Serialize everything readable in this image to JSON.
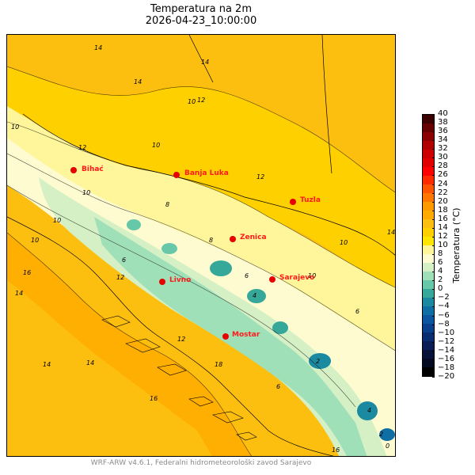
{
  "title": {
    "line1": "Temperatura na 2m",
    "line2": "2026-04-23_10:00:00"
  },
  "cities": [
    {
      "name": "Bihać"
    },
    {
      "name": "Banja Luka"
    },
    {
      "name": "Tuzla"
    },
    {
      "name": "Zenica"
    },
    {
      "name": "Sarajevo"
    },
    {
      "name": "Livno"
    },
    {
      "name": "Mostar"
    }
  ],
  "contour_labels": [
    "14",
    "14",
    "14",
    "10",
    "12",
    "10",
    "12",
    "10",
    "12",
    "10",
    "8",
    "6",
    "10",
    "10",
    "14",
    "12",
    "14",
    "16",
    "16",
    "14",
    "18",
    "16",
    "8",
    "6",
    "4",
    "2",
    "6",
    "10",
    "12",
    "14",
    "10",
    "6",
    "4",
    "2",
    "0"
  ],
  "colorbar": {
    "label": "Temperatura (°C)",
    "ticks": [
      "40",
      "38",
      "36",
      "34",
      "32",
      "30",
      "28",
      "26",
      "24",
      "22",
      "20",
      "18",
      "16",
      "14",
      "12",
      "10",
      "8",
      "6",
      "4",
      "2",
      "0",
      "−2",
      "−4",
      "−6",
      "−8",
      "−10",
      "−12",
      "−14",
      "−16",
      "−18",
      "−20"
    ],
    "colors": [
      "#3d0000",
      "#660000",
      "#8b0000",
      "#b00000",
      "#cc0000",
      "#e00000",
      "#ff0000",
      "#ff2a00",
      "#ff5500",
      "#ff7700",
      "#ff9900",
      "#ffaa00",
      "#fdbf0f",
      "#ffd000",
      "#ffe600",
      "#fff59a",
      "#fffbd0",
      "#d5f0c5",
      "#9fe0b8",
      "#66c8a8",
      "#35a89a",
      "#1b8aa0",
      "#0f6fa5",
      "#0b56a0",
      "#0a3f8c",
      "#0a2c70",
      "#0a1e55",
      "#06123a",
      "#030a22",
      "#000000"
    ]
  },
  "footer": "WRF-ARW v4.6.1, Federalni hidrometeorološki zavod Sarajevo"
}
